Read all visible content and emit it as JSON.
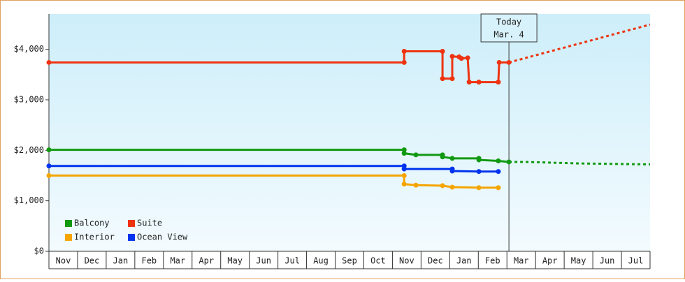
{
  "chart_data": {
    "type": "line",
    "categories": [
      "Nov",
      "Dec",
      "Jan",
      "Feb",
      "Mar",
      "Apr",
      "May",
      "Jun",
      "Jul",
      "Aug",
      "Sep",
      "Oct",
      "Nov",
      "Dec",
      "Jan",
      "Feb",
      "Mar",
      "Apr",
      "May",
      "Jun",
      "Jul"
    ],
    "xlim": [
      0,
      21
    ],
    "ylim": [
      0,
      4700
    ],
    "yticks": [
      {
        "value": 0,
        "label": "$0"
      },
      {
        "value": 1000,
        "label": "$1,000"
      },
      {
        "value": 2000,
        "label": "$2,000"
      },
      {
        "value": 3000,
        "label": "$3,000"
      },
      {
        "value": 4000,
        "label": "$4,000"
      }
    ],
    "today": {
      "x": 16.07,
      "label": [
        "Today",
        "Mar. 4"
      ]
    },
    "series": [
      {
        "name": "Balcony",
        "color": "#119911",
        "x": [
          0,
          12.41,
          12.41,
          12.82,
          13.75,
          13.75,
          14.09,
          15.02,
          15.02,
          15.7,
          16.07
        ],
        "values": [
          2010,
          2010,
          1940,
          1910,
          1910,
          1870,
          1840,
          1840,
          1810,
          1790,
          1770
        ]
      },
      {
        "name": "Suite",
        "color": "#ee3311",
        "x": [
          0,
          12.41,
          12.41,
          13.75,
          13.75,
          14.09,
          14.09,
          14.33,
          14.41,
          14.63,
          14.68,
          15.02,
          15.7,
          15.73,
          16.07
        ],
        "values": [
          3740,
          3740,
          3960,
          3960,
          3420,
          3420,
          3860,
          3850,
          3820,
          3830,
          3350,
          3350,
          3350,
          3740,
          3740
        ]
      },
      {
        "name": "Interior",
        "color": "#f5a500",
        "x": [
          0,
          12.41,
          12.41,
          12.82,
          13.75,
          14.09,
          15.02,
          15.7
        ],
        "values": [
          1500,
          1500,
          1330,
          1310,
          1300,
          1270,
          1260,
          1260
        ]
      },
      {
        "name": "Ocean View",
        "color": "#0033ee",
        "x": [
          0,
          12.41,
          12.41,
          14.09,
          14.09,
          15.02,
          15.7
        ],
        "values": [
          1690,
          1690,
          1630,
          1630,
          1590,
          1580,
          1580
        ]
      }
    ],
    "forecasts": [
      {
        "color": "#ee3311",
        "x": [
          16.07,
          21
        ],
        "values": [
          3740,
          4490
        ]
      },
      {
        "color": "#119911",
        "x": [
          16.07,
          16.61,
          18.56,
          21
        ],
        "values": [
          1770,
          1770,
          1740,
          1720
        ]
      }
    ]
  }
}
